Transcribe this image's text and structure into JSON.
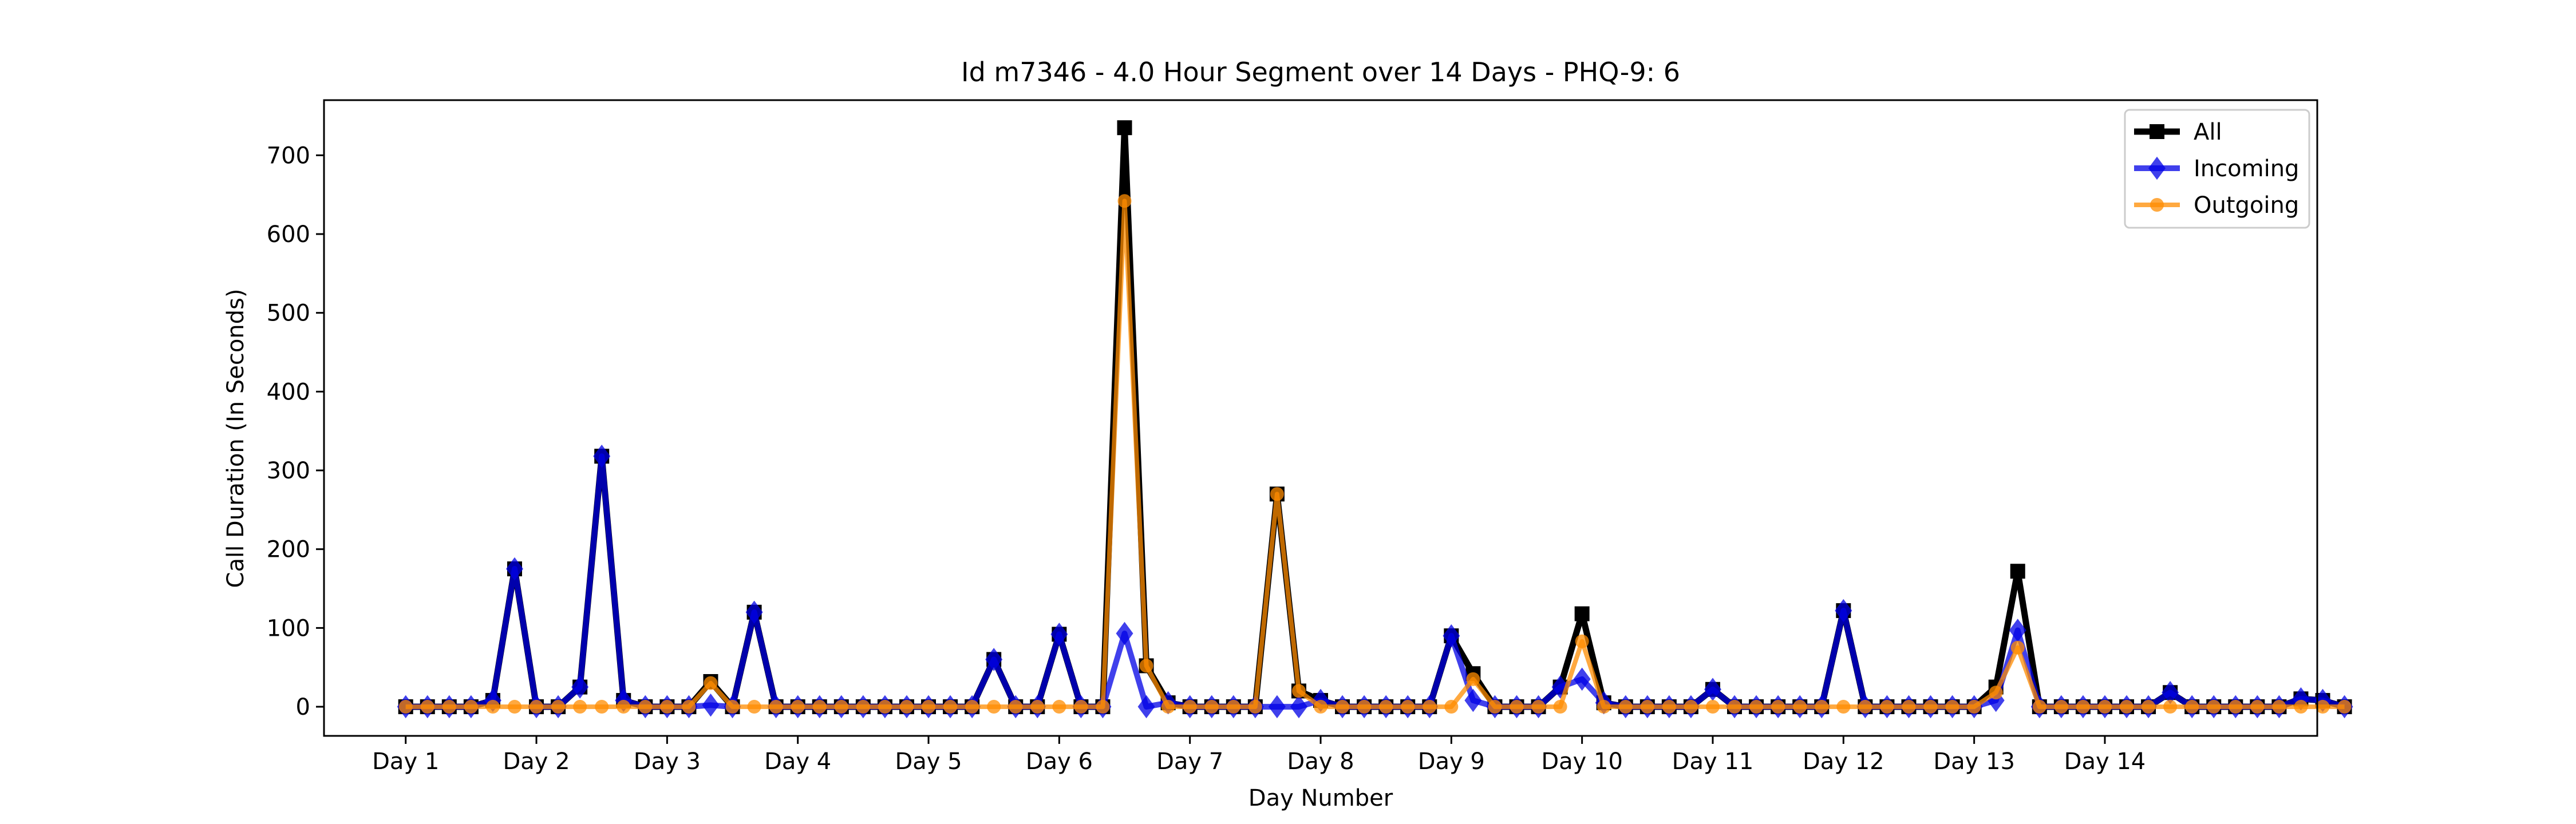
{
  "chart_data": {
    "type": "line",
    "title": "Id m7346 - 4.0 Hour Segment over 14 Days - PHQ-9: 6",
    "xlabel": "Day Number",
    "ylabel": "Call Duration (In Seconds)",
    "ylim": [
      -37,
      770
    ],
    "xlim": [
      -3.75,
      87.75
    ],
    "yticks": [
      0,
      100,
      200,
      300,
      400,
      500,
      600,
      700
    ],
    "xticks": [
      {
        "x": 0,
        "label": "Day 1"
      },
      {
        "x": 6,
        "label": "Day 2"
      },
      {
        "x": 12,
        "label": "Day 3"
      },
      {
        "x": 18,
        "label": "Day 4"
      },
      {
        "x": 24,
        "label": "Day 5"
      },
      {
        "x": 30,
        "label": "Day 6"
      },
      {
        "x": 36,
        "label": "Day 7"
      },
      {
        "x": 42,
        "label": "Day 8"
      },
      {
        "x": 48,
        "label": "Day 9"
      },
      {
        "x": 54,
        "label": "Day 10"
      },
      {
        "x": 60,
        "label": "Day 11"
      },
      {
        "x": 66,
        "label": "Day 12"
      },
      {
        "x": 72,
        "label": "Day 13"
      },
      {
        "x": 78,
        "label": "Day 14"
      }
    ],
    "grid": false,
    "legend_position": "top-right",
    "series": [
      {
        "name": "All",
        "color": "#000000",
        "marker": "square",
        "values": [
          0,
          0,
          0,
          0,
          8,
          175,
          0,
          0,
          25,
          318,
          8,
          0,
          0,
          0,
          32,
          0,
          120,
          0,
          0,
          0,
          0,
          0,
          0,
          0,
          0,
          0,
          0,
          60,
          0,
          0,
          92,
          0,
          0,
          735,
          52,
          5,
          0,
          0,
          0,
          0,
          270,
          20,
          8,
          0,
          0,
          0,
          0,
          0,
          90,
          42,
          0,
          0,
          0,
          25,
          118,
          5,
          0,
          0,
          0,
          0,
          22,
          0,
          0,
          0,
          0,
          0,
          122,
          0,
          0,
          0,
          0,
          0,
          0,
          25,
          172,
          0,
          0,
          0,
          0,
          0,
          0,
          18,
          0,
          0,
          0,
          0,
          0,
          10,
          8,
          0
        ]
      },
      {
        "name": "Incoming",
        "color": "#0000e6",
        "marker": "diamond",
        "values": [
          0,
          0,
          0,
          0,
          8,
          175,
          0,
          0,
          25,
          318,
          8,
          0,
          0,
          0,
          2,
          0,
          120,
          0,
          0,
          0,
          0,
          0,
          0,
          0,
          0,
          0,
          0,
          60,
          0,
          0,
          92,
          0,
          0,
          93,
          0,
          5,
          0,
          0,
          0,
          0,
          0,
          0,
          8,
          0,
          0,
          0,
          0,
          0,
          90,
          8,
          0,
          0,
          0,
          25,
          35,
          5,
          0,
          0,
          0,
          0,
          22,
          0,
          0,
          0,
          0,
          0,
          122,
          0,
          0,
          0,
          0,
          0,
          0,
          8,
          97,
          0,
          0,
          0,
          0,
          0,
          0,
          18,
          0,
          0,
          0,
          0,
          0,
          10,
          8,
          0
        ]
      },
      {
        "name": "Outgoing",
        "color": "#ff8c00",
        "marker": "circle",
        "values": [
          0,
          0,
          0,
          0,
          0,
          0,
          0,
          0,
          0,
          0,
          0,
          0,
          0,
          0,
          30,
          0,
          0,
          0,
          0,
          0,
          0,
          0,
          0,
          0,
          0,
          0,
          0,
          0,
          0,
          0,
          0,
          0,
          0,
          642,
          52,
          0,
          0,
          0,
          0,
          0,
          270,
          20,
          0,
          0,
          0,
          0,
          0,
          0,
          0,
          35,
          0,
          0,
          0,
          0,
          83,
          0,
          0,
          0,
          0,
          0,
          0,
          0,
          0,
          0,
          0,
          0,
          0,
          0,
          0,
          0,
          0,
          0,
          0,
          18,
          75,
          0,
          0,
          0,
          0,
          0,
          0,
          0,
          0,
          0,
          0,
          0,
          0,
          0,
          0,
          0
        ]
      }
    ]
  }
}
